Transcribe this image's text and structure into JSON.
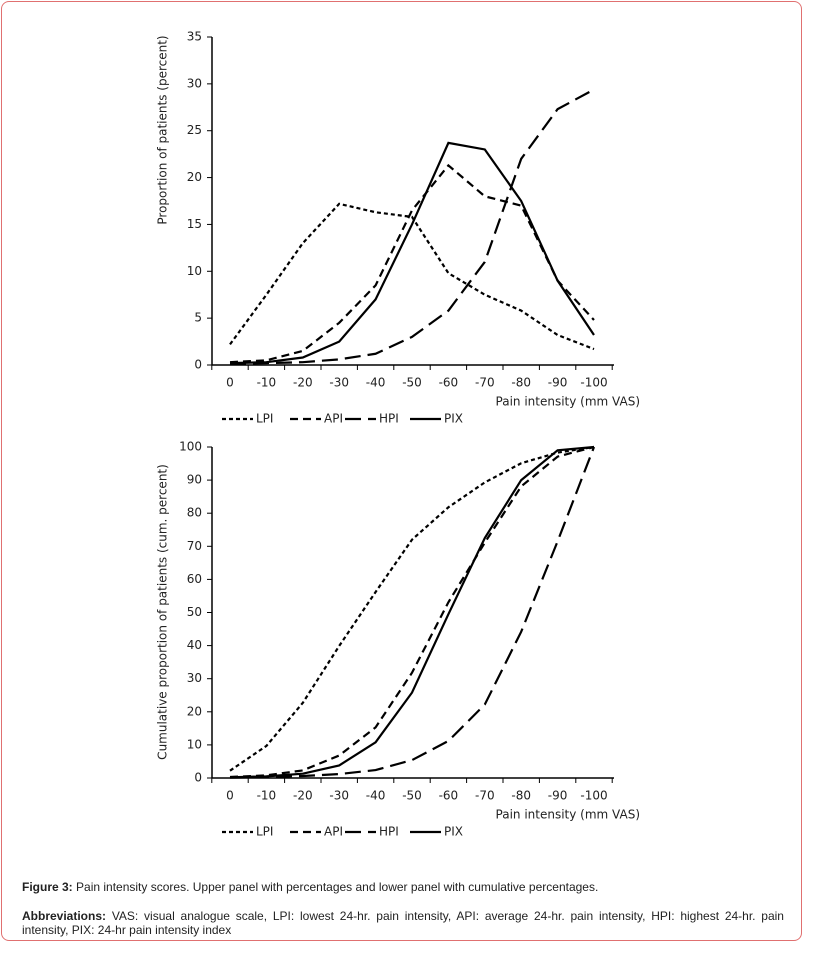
{
  "chart_data": [
    {
      "type": "line",
      "y_label": "Proportion of patients (percent)",
      "x_label": "Pain intensity (mm VAS)",
      "categories": [
        "0",
        "-10",
        "-20",
        "-30",
        "-40",
        "-50",
        "-60",
        "-70",
        "-80",
        "-90",
        "-100"
      ],
      "ylim": [
        0,
        35
      ],
      "yticks": [
        0,
        5,
        10,
        15,
        20,
        25,
        30,
        35
      ],
      "series": [
        {
          "name": "LPI",
          "color": "#000000",
          "dash": "short-dash",
          "values": [
            2.2,
            7.5,
            13,
            17.2,
            16.3,
            15.8,
            9.8,
            7.5,
            5.8,
            3.2,
            1.7
          ]
        },
        {
          "name": "API",
          "color": "#000000",
          "dash": "dash",
          "values": [
            0.3,
            0.5,
            1.5,
            4.5,
            8.5,
            16.5,
            21.3,
            18,
            17,
            9,
            4.8
          ]
        },
        {
          "name": "HPI",
          "color": "#000000",
          "dash": "long-dash",
          "values": [
            0.1,
            0.2,
            0.3,
            0.6,
            1.2,
            3,
            5.8,
            11,
            22,
            27.3,
            29.4
          ]
        },
        {
          "name": "PIX",
          "color": "#000000",
          "dash": "solid",
          "values": [
            0.2,
            0.3,
            0.8,
            2.5,
            7,
            15,
            23.7,
            23,
            17.5,
            9,
            3.2
          ]
        }
      ]
    },
    {
      "type": "line",
      "y_label": "Cumulative proportion of patients (cum. percent)",
      "x_label": "Pain intensity (mm VAS)",
      "categories": [
        "0",
        "-10",
        "-20",
        "-30",
        "-40",
        "-50",
        "-60",
        "-70",
        "-80",
        "-90",
        "-100"
      ],
      "ylim": [
        0,
        100
      ],
      "yticks": [
        0,
        10,
        20,
        30,
        40,
        50,
        60,
        70,
        80,
        90,
        100
      ],
      "series": [
        {
          "name": "LPI",
          "color": "#000000",
          "dash": "short-dash",
          "values": [
            2.2,
            9.7,
            22.7,
            39.9,
            56.2,
            72,
            81.8,
            89.3,
            95.1,
            98.3,
            100
          ]
        },
        {
          "name": "API",
          "color": "#000000",
          "dash": "dash",
          "values": [
            0.3,
            0.8,
            2.3,
            6.8,
            15.3,
            31.8,
            53.1,
            71.1,
            88.1,
            97.1,
            100
          ]
        },
        {
          "name": "HPI",
          "color": "#000000",
          "dash": "long-dash",
          "values": [
            0.1,
            0.3,
            0.6,
            1.2,
            2.4,
            5.4,
            11.2,
            22.2,
            44.2,
            71.5,
            100
          ]
        },
        {
          "name": "PIX",
          "color": "#000000",
          "dash": "solid",
          "values": [
            0.2,
            0.5,
            1.3,
            3.8,
            10.8,
            25.8,
            49.5,
            72.5,
            90,
            99,
            100
          ]
        }
      ]
    }
  ],
  "caption": {
    "label": "Figure 3:",
    "text": "Pain intensity scores. Upper panel with percentages and lower panel with cumulative percentages."
  },
  "abbreviations": {
    "label": "Abbreviations:",
    "text": "VAS: visual analogue scale, LPI: lowest 24-hr. pain intensity, API: average 24-hr. pain intensity, HPI: highest 24-hr. pain intensity, PIX: 24-hr pain intensity index"
  }
}
